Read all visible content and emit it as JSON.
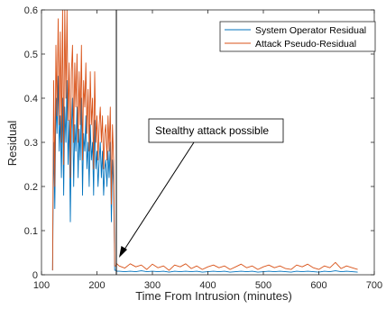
{
  "chart_data": {
    "type": "line",
    "xlabel": "Time From Intrusion (minutes)",
    "ylabel": "Residual",
    "xlim": [
      100,
      700
    ],
    "ylim": [
      0,
      0.6
    ],
    "x_ticks": [
      100,
      200,
      300,
      400,
      500,
      600,
      700
    ],
    "y_ticks": [
      0,
      0.1,
      0.2,
      0.3,
      0.4,
      0.5,
      0.6
    ],
    "legend_position": "top-right",
    "box": true,
    "grid": false,
    "annotation": {
      "text": "Stealthy attack possible",
      "arrow_to": {
        "x": 235,
        "y": 0.01
      }
    },
    "event_marker_x": 235,
    "series": [
      {
        "name": "System Operator Residual",
        "color": "#0072bd",
        "x": [
          120,
          122,
          124,
          126,
          128,
          130,
          132,
          134,
          136,
          138,
          140,
          142,
          144,
          146,
          148,
          150,
          152,
          154,
          156,
          158,
          160,
          162,
          164,
          166,
          168,
          170,
          172,
          174,
          176,
          178,
          180,
          182,
          184,
          186,
          188,
          190,
          192,
          194,
          196,
          198,
          200,
          202,
          204,
          206,
          208,
          210,
          212,
          214,
          216,
          218,
          220,
          222,
          224,
          226,
          228,
          230,
          232,
          234,
          236,
          240,
          250,
          260,
          270,
          280,
          290,
          300,
          310,
          320,
          330,
          340,
          350,
          360,
          370,
          380,
          390,
          400,
          410,
          420,
          430,
          440,
          450,
          460,
          470,
          480,
          490,
          500,
          510,
          520,
          530,
          540,
          550,
          560,
          570,
          580,
          590,
          600,
          610,
          620,
          630,
          640,
          650,
          660,
          670
        ],
        "values": [
          0.01,
          0.3,
          0.15,
          0.4,
          0.32,
          0.45,
          0.28,
          0.36,
          0.22,
          0.4,
          0.18,
          0.38,
          0.3,
          0.44,
          0.25,
          0.35,
          0.12,
          0.33,
          0.4,
          0.2,
          0.34,
          0.28,
          0.38,
          0.22,
          0.33,
          0.26,
          0.4,
          0.18,
          0.32,
          0.28,
          0.36,
          0.24,
          0.3,
          0.2,
          0.34,
          0.26,
          0.3,
          0.18,
          0.35,
          0.24,
          0.28,
          0.2,
          0.26,
          0.3,
          0.22,
          0.28,
          0.18,
          0.24,
          0.26,
          0.2,
          0.28,
          0.22,
          0.3,
          0.12,
          0.26,
          0.2,
          0.01,
          0.01,
          0.008,
          0.008,
          0.007,
          0.008,
          0.007,
          0.009,
          0.007,
          0.008,
          0.007,
          0.008,
          0.006,
          0.008,
          0.007,
          0.008,
          0.007,
          0.008,
          0.006,
          0.007,
          0.008,
          0.007,
          0.008,
          0.006,
          0.007,
          0.008,
          0.007,
          0.008,
          0.006,
          0.007,
          0.008,
          0.007,
          0.008,
          0.007,
          0.006,
          0.008,
          0.007,
          0.008,
          0.007,
          0.006,
          0.008,
          0.007,
          0.009,
          0.007,
          0.008,
          0.007,
          0.006
        ]
      },
      {
        "name": "Attack Pseudo-Residual",
        "color": "#d95319",
        "x": [
          120,
          122,
          124,
          126,
          128,
          130,
          132,
          134,
          136,
          138,
          140,
          142,
          144,
          146,
          148,
          150,
          152,
          154,
          156,
          158,
          160,
          162,
          164,
          166,
          168,
          170,
          172,
          174,
          176,
          178,
          180,
          182,
          184,
          186,
          188,
          190,
          192,
          194,
          196,
          198,
          200,
          202,
          204,
          206,
          208,
          210,
          212,
          214,
          216,
          218,
          220,
          222,
          224,
          226,
          228,
          230,
          232,
          234,
          236,
          240,
          250,
          260,
          270,
          280,
          290,
          300,
          310,
          320,
          330,
          340,
          350,
          360,
          370,
          380,
          390,
          400,
          410,
          420,
          430,
          440,
          450,
          460,
          470,
          480,
          490,
          500,
          510,
          520,
          530,
          540,
          550,
          560,
          570,
          580,
          590,
          600,
          610,
          620,
          630,
          640,
          650,
          660,
          670
        ],
        "values": [
          0.01,
          0.44,
          0.2,
          0.52,
          0.36,
          0.58,
          0.34,
          0.55,
          0.3,
          0.6,
          0.25,
          0.6,
          0.4,
          0.6,
          0.35,
          0.48,
          0.22,
          0.46,
          0.52,
          0.3,
          0.48,
          0.38,
          0.5,
          0.3,
          0.46,
          0.34,
          0.52,
          0.26,
          0.44,
          0.38,
          0.48,
          0.32,
          0.42,
          0.28,
          0.46,
          0.34,
          0.4,
          0.24,
          0.46,
          0.3,
          0.36,
          0.26,
          0.34,
          0.38,
          0.3,
          0.36,
          0.24,
          0.32,
          0.34,
          0.26,
          0.36,
          0.28,
          0.38,
          0.16,
          0.34,
          0.26,
          0.02,
          0.02,
          0.025,
          0.02,
          0.015,
          0.025,
          0.018,
          0.022,
          0.012,
          0.024,
          0.016,
          0.02,
          0.01,
          0.022,
          0.018,
          0.025,
          0.014,
          0.02,
          0.012,
          0.018,
          0.022,
          0.016,
          0.02,
          0.012,
          0.018,
          0.024,
          0.016,
          0.02,
          0.012,
          0.018,
          0.022,
          0.016,
          0.02,
          0.014,
          0.012,
          0.022,
          0.018,
          0.024,
          0.016,
          0.012,
          0.02,
          0.016,
          0.028,
          0.014,
          0.02,
          0.016,
          0.012
        ]
      }
    ]
  }
}
